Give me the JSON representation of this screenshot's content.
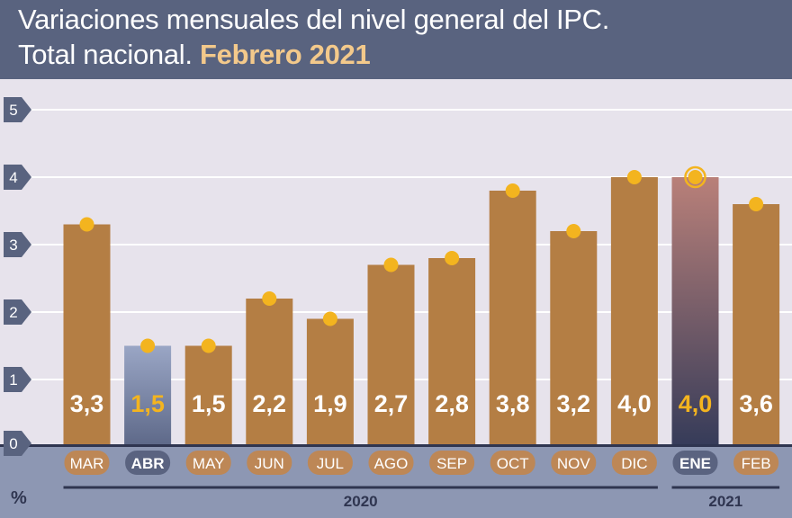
{
  "header": {
    "title_line1": "Variaciones mensuales del nivel general del IPC.",
    "title_line2_prefix": "Total nacional.",
    "title_line2_highlight": "Febrero 2021"
  },
  "colors": {
    "header_bg": "#59637f",
    "plot_bg": "#e7e3ec",
    "bar": "#b47e44",
    "bar_highlight_top": "#9aa6c5",
    "bar_highlight_bottom": "#5d6888",
    "bar_ene_top": "#b98079",
    "bar_ene_bottom": "#353b59",
    "marker": "#f3b41f",
    "label_highlight": "#f3b41f",
    "axis_footer_bg": "#8d97b3",
    "pill_normal": "#bd8756",
    "pill_highlight": "#5a6380",
    "grid": "#ffffff"
  },
  "chart_data": {
    "type": "bar",
    "categories": [
      "MAR",
      "ABR",
      "MAY",
      "JUN",
      "JUL",
      "AGO",
      "SEP",
      "OCT",
      "NOV",
      "DIC",
      "ENE",
      "FEB"
    ],
    "values": [
      3.3,
      1.5,
      1.5,
      2.2,
      1.9,
      2.7,
      2.8,
      3.8,
      3.2,
      4.0,
      4.0,
      3.6
    ],
    "value_labels": [
      "3,3",
      "1,5",
      "1,5",
      "2,2",
      "1,9",
      "2,7",
      "2,8",
      "3,8",
      "3,2",
      "4,0",
      "4,0",
      "3,6"
    ],
    "highlighted": [
      "ABR",
      "ENE"
    ],
    "marker_values": [
      3.3,
      1.5,
      1.5,
      2.2,
      1.9,
      2.7,
      2.8,
      3.8,
      3.2,
      4.0,
      4.0,
      3.6
    ],
    "ylim": [
      0,
      5
    ],
    "yticks": [
      0,
      1,
      2,
      3,
      4,
      5
    ],
    "ylabel": "%",
    "grid": true,
    "year_groups": [
      {
        "label": "2020",
        "from": "MAR",
        "to": "DIC"
      },
      {
        "label": "2021",
        "from": "ENE",
        "to": "FEB"
      }
    ]
  }
}
